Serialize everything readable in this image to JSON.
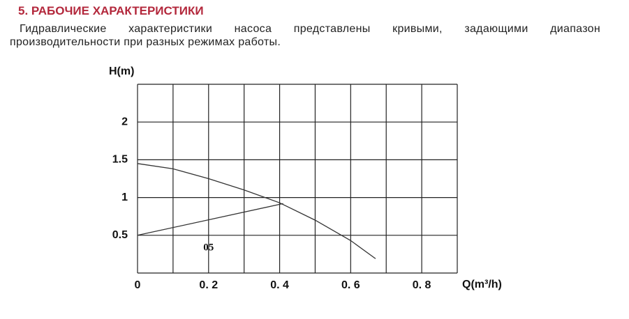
{
  "heading": "5. РАБОЧИЕ ХАРАКТЕРИСТИКИ",
  "paragraph": "Гидравлические характеристики насоса представлены кривыми, задающими диапазон производительности при разных режимах работы.",
  "chart_data": {
    "type": "line",
    "ylabel": "H(m)",
    "xlabel": "Q(m³/h)",
    "xlim": [
      0,
      0.9
    ],
    "ylim": [
      0,
      2.5
    ],
    "xticks": [
      0,
      {
        "value": 0.2,
        "label": "0. 2"
      },
      {
        "value": 0.4,
        "label": "0. 4"
      },
      {
        "value": 0.6,
        "label": "0. 6"
      },
      {
        "value": 0.8,
        "label": "0. 8"
      }
    ],
    "minor_xticks": [
      0.1,
      0.3,
      0.5,
      0.7,
      0.9
    ],
    "yticks": [
      0.5,
      1,
      1.5,
      2
    ],
    "minor_yticks": [
      0,
      2.5
    ],
    "grid": true,
    "series": [
      {
        "color": "#333333",
        "x": [
          0,
          0.1,
          0.2,
          0.3,
          0.4,
          0.5,
          0.6,
          0.67
        ],
        "values": [
          1.45,
          1.38,
          1.25,
          1.1,
          0.93,
          0.7,
          0.43,
          0.19
        ]
      },
      {
        "color": "#333333",
        "x": [
          0,
          0.41
        ],
        "values": [
          0.5,
          0.92
        ]
      }
    ],
    "annotations": [
      {
        "text": "05",
        "x": 0.2,
        "y": 0.33
      }
    ]
  }
}
